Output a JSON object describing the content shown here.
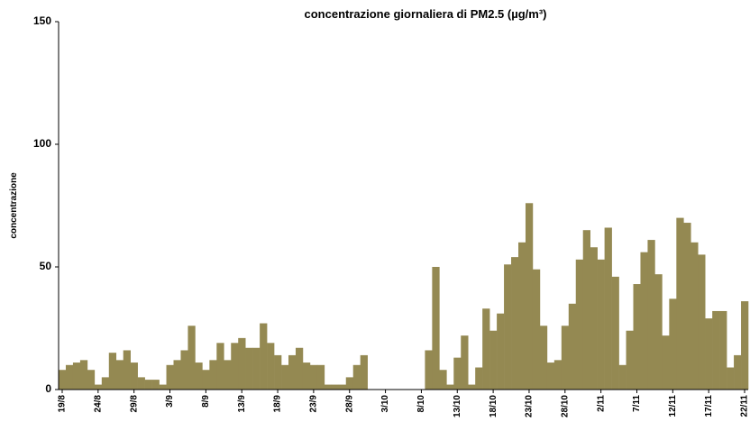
{
  "chart_data": {
    "type": "bar",
    "title": "concentrazione giornaliera di PM2.5 (µg/m³)",
    "y_label": "concentrazione",
    "color": "#948952",
    "grid": false,
    "ylim": [
      0,
      150
    ],
    "yticks": [
      0,
      50,
      100,
      150
    ],
    "categories": [
      "19/8",
      null,
      null,
      null,
      null,
      "24/8",
      null,
      null,
      null,
      null,
      "29/8",
      null,
      null,
      null,
      null,
      "3/9",
      null,
      null,
      null,
      null,
      "8/9",
      null,
      null,
      null,
      null,
      "13/9",
      null,
      null,
      null,
      null,
      "18/9",
      null,
      null,
      null,
      null,
      "23/9",
      null,
      null,
      null,
      null,
      "28/9",
      null,
      null,
      null,
      null,
      "3/10",
      null,
      null,
      null,
      null,
      "8/10",
      null,
      null,
      null,
      null,
      "13/10",
      null,
      null,
      null,
      null,
      "18/10",
      null,
      null,
      null,
      null,
      "23/10",
      null,
      null,
      null,
      null,
      "28/10",
      null,
      null,
      null,
      null,
      "2/11",
      null,
      null,
      null,
      null,
      "7/11",
      null,
      null,
      null,
      null,
      "12/11",
      null,
      null,
      null,
      null,
      "17/11",
      null,
      null,
      null,
      null,
      "22/11"
    ],
    "values": [
      8,
      10,
      11,
      12,
      8,
      2,
      5,
      15,
      12,
      16,
      11,
      5,
      4,
      4,
      2,
      10,
      12,
      16,
      26,
      11,
      8,
      12,
      19,
      12,
      19,
      21,
      17,
      17,
      27,
      19,
      14,
      10,
      14,
      17,
      11,
      10,
      10,
      2,
      2,
      2,
      5,
      10,
      14,
      null,
      null,
      null,
      null,
      null,
      null,
      null,
      null,
      16,
      50,
      8,
      2,
      13,
      22,
      2,
      9,
      33,
      24,
      31,
      51,
      54,
      60,
      76,
      49,
      26,
      11,
      12,
      26,
      35,
      53,
      65,
      58,
      53,
      66,
      46,
      10,
      24,
      43,
      56,
      61,
      47,
      22,
      37,
      70,
      68,
      60,
      55,
      29,
      32,
      32,
      9,
      14,
      36
    ]
  }
}
